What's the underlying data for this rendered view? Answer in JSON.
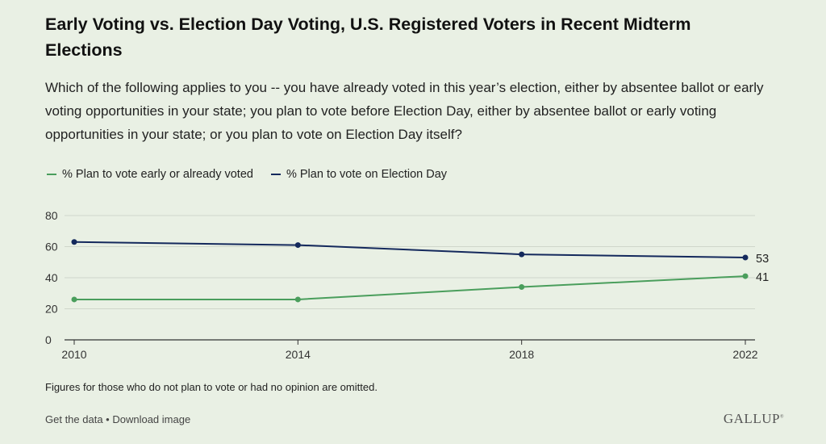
{
  "header": {
    "title": "Early Voting vs. Election Day Voting, U.S. Registered Voters in Recent Midterm Elections",
    "subtitle": "Which of the following applies to you -- you have already voted in this year’s election, either by absentee ballot or early voting opportunities in your state; you plan to vote before Election Day, either by absentee ballot or early voting opportunities in your state; or you plan to vote on Election Day itself?"
  },
  "colors": {
    "background": "#e9f0e4",
    "early": "#4a9e5c",
    "election_day": "#14295c",
    "grid": "#cfd6cb",
    "axis": "#333333"
  },
  "chart_data": {
    "type": "line",
    "x": [
      2010,
      2014,
      2018,
      2022
    ],
    "xticks": [
      "2010",
      "2014",
      "2018",
      "2022"
    ],
    "ylim": [
      0,
      80
    ],
    "yticks": [
      "0",
      "20",
      "40",
      "60",
      "80"
    ],
    "grid": true,
    "legend_position": "top-left",
    "series": [
      {
        "name": "% Plan to vote early or already voted",
        "values": [
          26,
          26,
          34,
          41
        ],
        "end_label": "41"
      },
      {
        "name": "% Plan to vote on Election Day",
        "values": [
          63,
          61,
          55,
          53
        ],
        "end_label": "53"
      }
    ]
  },
  "footnote": "Figures for those who do not plan to vote or had no opinion are omitted.",
  "footer": {
    "get_data": "Get the data",
    "separator": " • ",
    "download": "Download image",
    "logo": "GALLUP"
  }
}
